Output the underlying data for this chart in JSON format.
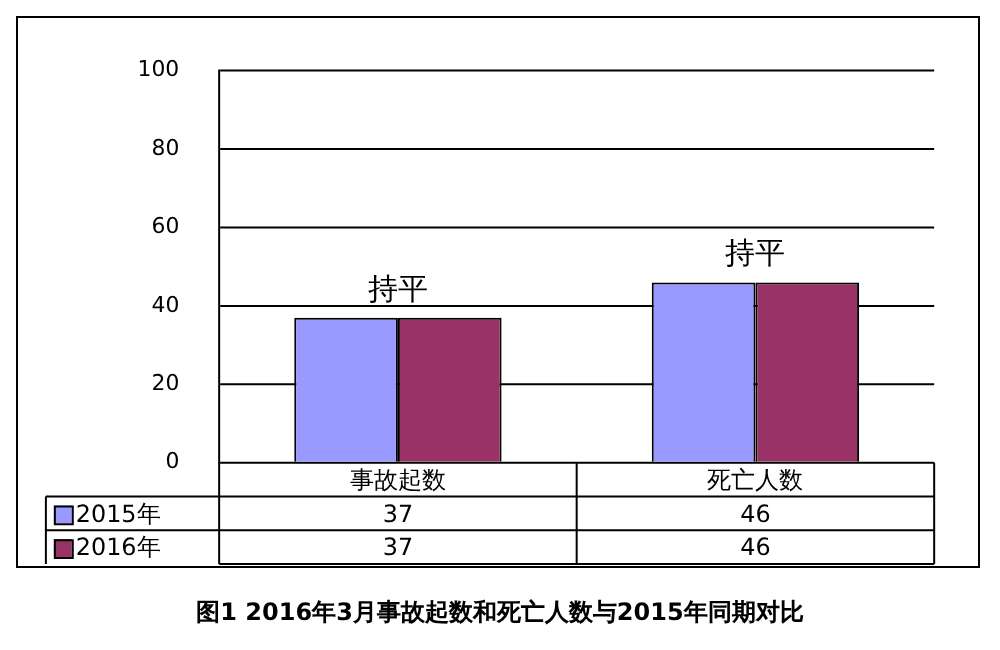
{
  "chart_data": {
    "type": "bar",
    "title": "图1   2016年3月事故起数和死亡人数与2015年同期对比",
    "categories": [
      "事故起数",
      "死亡人数"
    ],
    "series": [
      {
        "name": "2015年",
        "color": "#9999ff",
        "values": [
          37,
          46
        ]
      },
      {
        "name": "2016年",
        "color": "#993366",
        "values": [
          37,
          46
        ]
      }
    ],
    "ylim": [
      0,
      100
    ],
    "yticks": [
      0,
      20,
      40,
      60,
      80,
      100
    ],
    "grid": "y",
    "legend": "bottom left",
    "data_labels": true,
    "annotations": [
      {
        "text": "持平",
        "x": "事故起数",
        "y": 37
      },
      {
        "text": "持平",
        "x": "死亡人数",
        "y": 46
      }
    ]
  }
}
